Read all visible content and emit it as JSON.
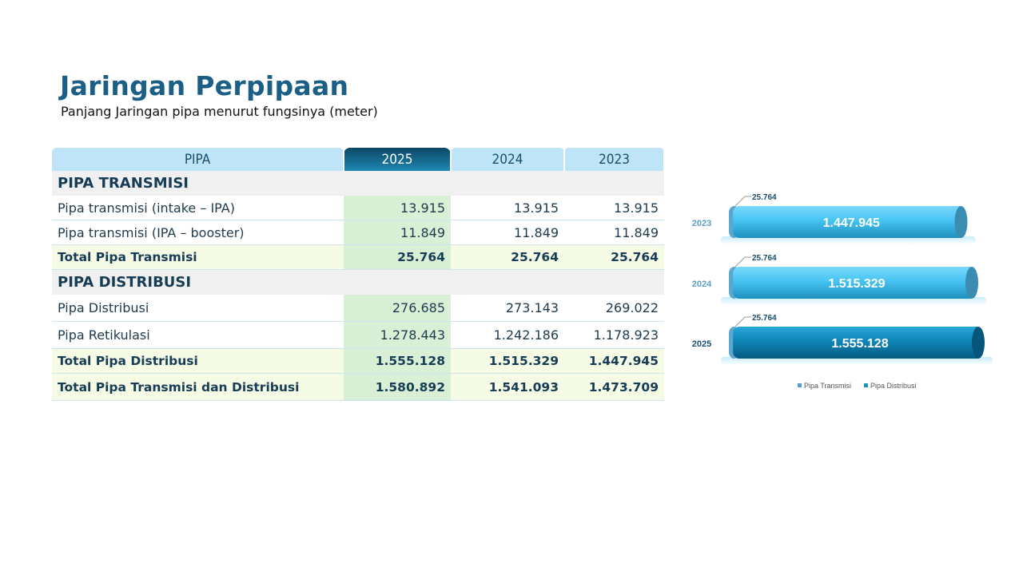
{
  "header": {
    "title": "Jaringan Perpipaan",
    "subtitle": "Panjang Jaringan pipa menurut fungsinya (meter)"
  },
  "table": {
    "columns": [
      "PIPA",
      "2025",
      "2024",
      "2023"
    ],
    "sections": [
      {
        "heading": "PIPA TRANSMISI",
        "rows": [
          {
            "label": "Pipa transmisi (intake – IPA)",
            "values": [
              "13.915",
              "13.915",
              "13.915"
            ]
          },
          {
            "label": "Pipa transmisi (IPA – booster)",
            "values": [
              "11.849",
              "11.849",
              "11.849"
            ]
          }
        ],
        "total": {
          "label": "Total Pipa Transmisi",
          "values": [
            "25.764",
            "25.764",
            "25.764"
          ]
        }
      },
      {
        "heading": "PIPA DISTRIBUSI",
        "rows": [
          {
            "label": "Pipa Distribusi",
            "values": [
              "276.685",
              "273.143",
              "269.022"
            ]
          },
          {
            "label": "Pipa Retikulasi",
            "values": [
              "1.278.443",
              "1.242.186",
              "1.178.923"
            ]
          }
        ],
        "total": {
          "label": "Total Pipa Distribusi",
          "values": [
            "1.555.128",
            "1.515.329",
            "1.447.945"
          ]
        }
      }
    ],
    "grand_total": {
      "label": "Total Pipa Transmisi dan Distribusi",
      "values": [
        "1.580.892",
        "1.541.093",
        "1.473.709"
      ]
    }
  },
  "chart_data": {
    "type": "bar",
    "orientation": "horizontal",
    "stacked": true,
    "categories": [
      "2023",
      "2024",
      "2025"
    ],
    "series": [
      {
        "name": "Pipa Transmisi",
        "values": [
          25764,
          25764,
          25764
        ],
        "labels": [
          "25.764",
          "25.764",
          "25.764"
        ],
        "color": "#5b9bd5"
      },
      {
        "name": "Pipa Distribusi",
        "values": [
          1447945,
          1515329,
          1555128
        ],
        "labels": [
          "1.447.945",
          "1.515.329",
          "1.555.128"
        ],
        "color": "#1e8fc0"
      }
    ],
    "legend": "bottom",
    "grid": false
  },
  "colors": {
    "title": "#1b5f86",
    "header_light": "#bfe4f7",
    "header_current": "#0c4766",
    "highlight_col": "#d9f0d6",
    "total_row": "#f6fbe5",
    "bar_light": "#46c4f2",
    "bar_dark": "#0a7eae"
  }
}
